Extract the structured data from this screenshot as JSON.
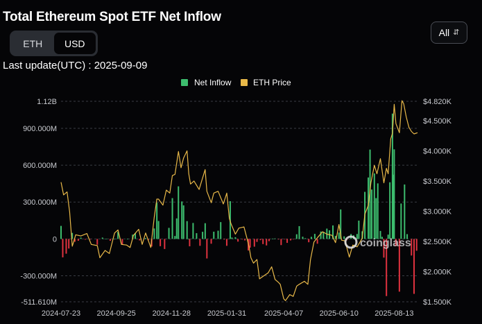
{
  "header": {
    "title": "Total Ethereum Spot ETF Net Inflow",
    "last_update": "Last update(UTC) : 2025-09-09"
  },
  "unit_toggle": {
    "options": [
      "ETH",
      "USD"
    ],
    "selected": "USD"
  },
  "range_select": {
    "value": "All"
  },
  "watermark": "coinglass",
  "chart_data": {
    "type": "bar+line",
    "title": "Total Ethereum Spot ETF Net Inflow",
    "legend": {
      "position": "top-center",
      "entries": [
        "Net Inflow",
        "ETH Price"
      ]
    },
    "x_ticks": [
      "2024-07-23",
      "2024-09-25",
      "2024-11-28",
      "2025-01-31",
      "2025-04-07",
      "2025-06-10",
      "2025-08-13"
    ],
    "x_range": [
      "2024-07-23",
      "2025-09-09"
    ],
    "y_left": {
      "ticks": [
        1120000000,
        900000000,
        600000000,
        300000000,
        0,
        -300000000,
        -511610000
      ],
      "tick_labels": [
        "1.12B",
        "900.000M",
        "600.000M",
        "300.000M",
        "0",
        "-300.000M",
        "-511.610M"
      ],
      "range": [
        -511610000,
        1120000000
      ]
    },
    "y_right": {
      "ticks": [
        4820,
        4500,
        4000,
        3500,
        3000,
        2500,
        2000,
        1500
      ],
      "tick_labels": [
        "$4.820K",
        "$4.500K",
        "$4.000K",
        "$3.500K",
        "$3.000K",
        "$2.500K",
        "$2.000K",
        "$1.500K"
      ],
      "range": [
        1500,
        4820
      ]
    },
    "grid": true,
    "colors": {
      "inflow_positive": "#3dbd6e",
      "inflow_negative": "#e0323f",
      "price_line": "#e9b949"
    },
    "series": [
      {
        "name": "Net Inflow",
        "axis": "left",
        "points": [
          [
            "2024-07-23",
            106000000
          ],
          [
            "2024-07-25",
            -150000000
          ],
          [
            "2024-07-29",
            -120000000
          ],
          [
            "2024-08-01",
            -78000000
          ],
          [
            "2024-08-05",
            49000000
          ],
          [
            "2024-08-08",
            -23000000
          ],
          [
            "2024-08-12",
            -15000000
          ],
          [
            "2024-08-15",
            11000000
          ],
          [
            "2024-08-20",
            -6000000
          ],
          [
            "2024-08-26",
            -3000000
          ],
          [
            "2024-09-03",
            -47000000
          ],
          [
            "2024-09-09",
            11000000
          ],
          [
            "2024-09-13",
            1000000
          ],
          [
            "2024-09-18",
            -15000000
          ],
          [
            "2024-09-23",
            2000000
          ],
          [
            "2024-09-27",
            58000000
          ],
          [
            "2024-10-02",
            -48000000
          ],
          [
            "2024-10-08",
            1000000
          ],
          [
            "2024-10-14",
            35000000
          ],
          [
            "2024-10-17",
            48000000
          ],
          [
            "2024-10-22",
            -12000000
          ],
          [
            "2024-10-29",
            7000000
          ],
          [
            "2024-11-01",
            -11000000
          ],
          [
            "2024-11-05",
            -62000000
          ],
          [
            "2024-11-08",
            85000000
          ],
          [
            "2024-11-11",
            295000000
          ],
          [
            "2024-11-13",
            146000000
          ],
          [
            "2024-11-15",
            -59000000
          ],
          [
            "2024-11-20",
            -82000000
          ],
          [
            "2024-11-25",
            90000000
          ],
          [
            "2024-11-29",
            332000000
          ],
          [
            "2024-12-02",
            24000000
          ],
          [
            "2024-12-04",
            167000000
          ],
          [
            "2024-12-06",
            428000000
          ],
          [
            "2024-12-10",
            305000000
          ],
          [
            "2024-12-12",
            273000000
          ],
          [
            "2024-12-16",
            145000000
          ],
          [
            "2024-12-18",
            2000000
          ],
          [
            "2024-12-19",
            -60000000
          ],
          [
            "2024-12-23",
            130000000
          ],
          [
            "2024-12-27",
            47000000
          ],
          [
            "2024-12-31",
            -56000000
          ],
          [
            "2025-01-03",
            58000000
          ],
          [
            "2025-01-06",
            128000000
          ],
          [
            "2025-01-08",
            -159000000
          ],
          [
            "2025-01-13",
            -39000000
          ],
          [
            "2025-01-16",
            59000000
          ],
          [
            "2025-01-21",
            67000000
          ],
          [
            "2025-01-24",
            137000000
          ],
          [
            "2025-01-28",
            -5000000
          ],
          [
            "2025-01-31",
            -56000000
          ],
          [
            "2025-02-04",
            307000000
          ],
          [
            "2025-02-06",
            11000000
          ],
          [
            "2025-02-10",
            14000000
          ],
          [
            "2025-02-13",
            -22000000
          ],
          [
            "2025-02-18",
            -3000000
          ],
          [
            "2025-02-21",
            -12000000
          ],
          [
            "2025-02-25",
            -94000000
          ],
          [
            "2025-02-27",
            -71000000
          ],
          [
            "2025-03-04",
            -63000000
          ],
          [
            "2025-03-07",
            -24000000
          ],
          [
            "2025-03-11",
            -10000000
          ],
          [
            "2025-03-14",
            -42000000
          ],
          [
            "2025-03-18",
            -53000000
          ],
          [
            "2025-03-21",
            -18000000
          ],
          [
            "2025-03-25",
            3000000
          ],
          [
            "2025-03-28",
            4000000
          ],
          [
            "2025-04-01",
            -4000000
          ],
          [
            "2025-04-04",
            -50000000
          ],
          [
            "2025-04-08",
            -3000000
          ],
          [
            "2025-04-11",
            -32000000
          ],
          [
            "2025-04-15",
            -12000000
          ],
          [
            "2025-04-18",
            -2000000
          ],
          [
            "2025-04-22",
            38000000
          ],
          [
            "2025-04-25",
            104000000
          ],
          [
            "2025-04-29",
            18000000
          ],
          [
            "2025-05-02",
            6000000
          ],
          [
            "2025-05-06",
            -27000000
          ],
          [
            "2025-05-09",
            17000000
          ],
          [
            "2025-05-13",
            41000000
          ],
          [
            "2025-05-16",
            -39000000
          ],
          [
            "2025-05-20",
            60000000
          ],
          [
            "2025-05-23",
            58000000
          ],
          [
            "2025-05-27",
            84000000
          ],
          [
            "2025-05-30",
            70000000
          ],
          [
            "2025-06-03",
            110000000
          ],
          [
            "2025-06-06",
            25000000
          ],
          [
            "2025-06-10",
            52000000
          ],
          [
            "2025-06-12",
            240000000
          ],
          [
            "2025-06-16",
            21000000
          ],
          [
            "2025-06-19",
            -11000000
          ],
          [
            "2025-06-24",
            40000000
          ],
          [
            "2025-06-27",
            30000000
          ],
          [
            "2025-07-01",
            40000000
          ],
          [
            "2025-07-03",
            149000000
          ],
          [
            "2025-07-07",
            62000000
          ],
          [
            "2025-07-10",
            383000000
          ],
          [
            "2025-07-14",
            500000000
          ],
          [
            "2025-07-16",
            727000000
          ],
          [
            "2025-07-18",
            402000000
          ],
          [
            "2025-07-21",
            533000000
          ],
          [
            "2025-07-23",
            332000000
          ],
          [
            "2025-07-25",
            452000000
          ],
          [
            "2025-07-28",
            65000000
          ],
          [
            "2025-07-30",
            17000000
          ],
          [
            "2025-08-01",
            -152000000
          ],
          [
            "2025-08-04",
            -465000000
          ],
          [
            "2025-08-06",
            35000000
          ],
          [
            "2025-08-08",
            461000000
          ],
          [
            "2025-08-11",
            1020000000
          ],
          [
            "2025-08-12",
            523000000
          ],
          [
            "2025-08-13",
            729000000
          ],
          [
            "2025-08-15",
            -59000000
          ],
          [
            "2025-08-19",
            -429000000
          ],
          [
            "2025-08-21",
            288000000
          ],
          [
            "2025-08-25",
            443000000
          ],
          [
            "2025-08-28",
            39000000
          ],
          [
            "2025-09-02",
            -135000000
          ],
          [
            "2025-09-05",
            -447000000
          ],
          [
            "2025-09-08",
            -96000000
          ]
        ]
      },
      {
        "name": "ETH Price",
        "axis": "right",
        "points": [
          [
            "2024-07-23",
            3480
          ],
          [
            "2024-07-26",
            3270
          ],
          [
            "2024-07-30",
            3320
          ],
          [
            "2024-08-02",
            2990
          ],
          [
            "2024-08-05",
            2420
          ],
          [
            "2024-08-09",
            2610
          ],
          [
            "2024-08-15",
            2590
          ],
          [
            "2024-08-22",
            2630
          ],
          [
            "2024-08-27",
            2450
          ],
          [
            "2024-09-03",
            2430
          ],
          [
            "2024-09-06",
            2230
          ],
          [
            "2024-09-12",
            2350
          ],
          [
            "2024-09-17",
            2300
          ],
          [
            "2024-09-23",
            2640
          ],
          [
            "2024-09-27",
            2690
          ],
          [
            "2024-10-01",
            2450
          ],
          [
            "2024-10-07",
            2440
          ],
          [
            "2024-10-11",
            2400
          ],
          [
            "2024-10-15",
            2600
          ],
          [
            "2024-10-21",
            2700
          ],
          [
            "2024-10-25",
            2450
          ],
          [
            "2024-10-29",
            2640
          ],
          [
            "2024-11-04",
            2400
          ],
          [
            "2024-11-08",
            2900
          ],
          [
            "2024-11-11",
            3200
          ],
          [
            "2024-11-13",
            3200
          ],
          [
            "2024-11-18",
            3100
          ],
          [
            "2024-11-22",
            3350
          ],
          [
            "2024-11-26",
            3300
          ],
          [
            "2024-11-29",
            3590
          ],
          [
            "2024-12-02",
            3610
          ],
          [
            "2024-12-06",
            3990
          ],
          [
            "2024-12-09",
            3720
          ],
          [
            "2024-12-12",
            3880
          ],
          [
            "2024-12-16",
            4000
          ],
          [
            "2024-12-18",
            3620
          ],
          [
            "2024-12-20",
            3450
          ],
          [
            "2024-12-24",
            3500
          ],
          [
            "2024-12-30",
            3360
          ],
          [
            "2025-01-06",
            3690
          ],
          [
            "2025-01-08",
            3330
          ],
          [
            "2025-01-13",
            3140
          ],
          [
            "2025-01-16",
            3300
          ],
          [
            "2025-01-21",
            3330
          ],
          [
            "2025-01-27",
            3120
          ],
          [
            "2025-01-31",
            3300
          ],
          [
            "2025-02-03",
            2880
          ],
          [
            "2025-02-05",
            2790
          ],
          [
            "2025-02-10",
            2620
          ],
          [
            "2025-02-14",
            2720
          ],
          [
            "2025-02-20",
            2740
          ],
          [
            "2025-02-24",
            2520
          ],
          [
            "2025-02-26",
            2400
          ],
          [
            "2025-02-28",
            2230
          ],
          [
            "2025-03-03",
            2140
          ],
          [
            "2025-03-07",
            2200
          ],
          [
            "2025-03-10",
            1880
          ],
          [
            "2025-03-14",
            1920
          ],
          [
            "2025-03-20",
            1980
          ],
          [
            "2025-03-24",
            2080
          ],
          [
            "2025-03-28",
            1870
          ],
          [
            "2025-04-01",
            1820
          ],
          [
            "2025-04-03",
            1790
          ],
          [
            "2025-04-07",
            1550
          ],
          [
            "2025-04-09",
            1520
          ],
          [
            "2025-04-14",
            1620
          ],
          [
            "2025-04-18",
            1590
          ],
          [
            "2025-04-22",
            1760
          ],
          [
            "2025-04-25",
            1790
          ],
          [
            "2025-05-01",
            1840
          ],
          [
            "2025-05-05",
            1790
          ],
          [
            "2025-05-08",
            2200
          ],
          [
            "2025-05-12",
            2490
          ],
          [
            "2025-05-16",
            2560
          ],
          [
            "2025-05-22",
            2660
          ],
          [
            "2025-05-27",
            2620
          ],
          [
            "2025-06-02",
            2600
          ],
          [
            "2025-06-06",
            2480
          ],
          [
            "2025-06-10",
            2780
          ],
          [
            "2025-06-13",
            2520
          ],
          [
            "2025-06-17",
            2510
          ],
          [
            "2025-06-22",
            2240
          ],
          [
            "2025-06-26",
            2440
          ],
          [
            "2025-07-01",
            2410
          ],
          [
            "2025-07-07",
            2550
          ],
          [
            "2025-07-10",
            2950
          ],
          [
            "2025-07-14",
            3100
          ],
          [
            "2025-07-17",
            3470
          ],
          [
            "2025-07-21",
            3760
          ],
          [
            "2025-07-24",
            3620
          ],
          [
            "2025-07-28",
            3870
          ],
          [
            "2025-08-01",
            3470
          ],
          [
            "2025-08-04",
            3710
          ],
          [
            "2025-08-06",
            3620
          ],
          [
            "2025-08-09",
            4200
          ],
          [
            "2025-08-11",
            4290
          ],
          [
            "2025-08-13",
            4770
          ],
          [
            "2025-08-15",
            4450
          ],
          [
            "2025-08-19",
            4300
          ],
          [
            "2025-08-22",
            4830
          ],
          [
            "2025-08-24",
            4780
          ],
          [
            "2025-08-27",
            4560
          ],
          [
            "2025-08-30",
            4390
          ],
          [
            "2025-09-02",
            4320
          ],
          [
            "2025-09-05",
            4280
          ],
          [
            "2025-09-09",
            4300
          ]
        ]
      }
    ]
  }
}
